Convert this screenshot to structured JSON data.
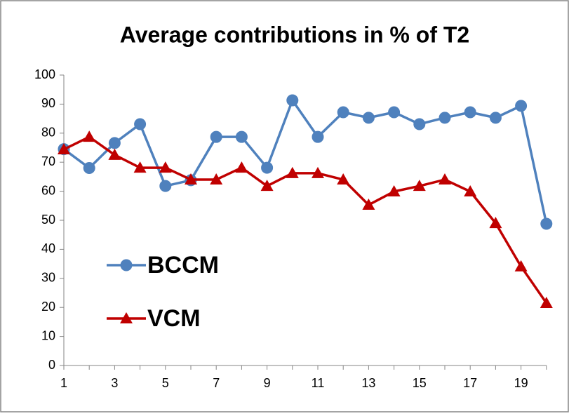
{
  "chart_data": {
    "type": "line",
    "title": "Average contributions in % of T2",
    "categories": [
      1,
      null,
      3,
      null,
      5,
      null,
      7,
      null,
      9,
      null,
      11,
      null,
      13,
      null,
      15,
      null,
      17,
      null,
      19,
      null
    ],
    "series": [
      {
        "name": "BCCM",
        "color": "#4f81bd",
        "marker": "circle",
        "values": [
          74.5,
          68,
          76.6,
          83.1,
          61.8,
          63.8,
          78.7,
          78.7,
          68.1,
          91.3,
          78.7,
          87.2,
          85.3,
          87.2,
          83.1,
          85.3,
          87.2,
          85.3,
          89.4,
          48.8
        ]
      },
      {
        "name": "VCM",
        "color": "#c00000",
        "marker": "triangle",
        "values": [
          74.4,
          78.7,
          72.5,
          68.1,
          68.1,
          64,
          64,
          68.1,
          61.8,
          66.2,
          66.2,
          64,
          55.3,
          59.9,
          61.8,
          64,
          59.9,
          49,
          34.1,
          21.5
        ]
      }
    ],
    "ylim": [
      0,
      100
    ],
    "yticks": [
      0,
      10,
      20,
      30,
      40,
      50,
      60,
      70,
      80,
      90,
      100
    ],
    "grid": false,
    "legend": "left"
  }
}
